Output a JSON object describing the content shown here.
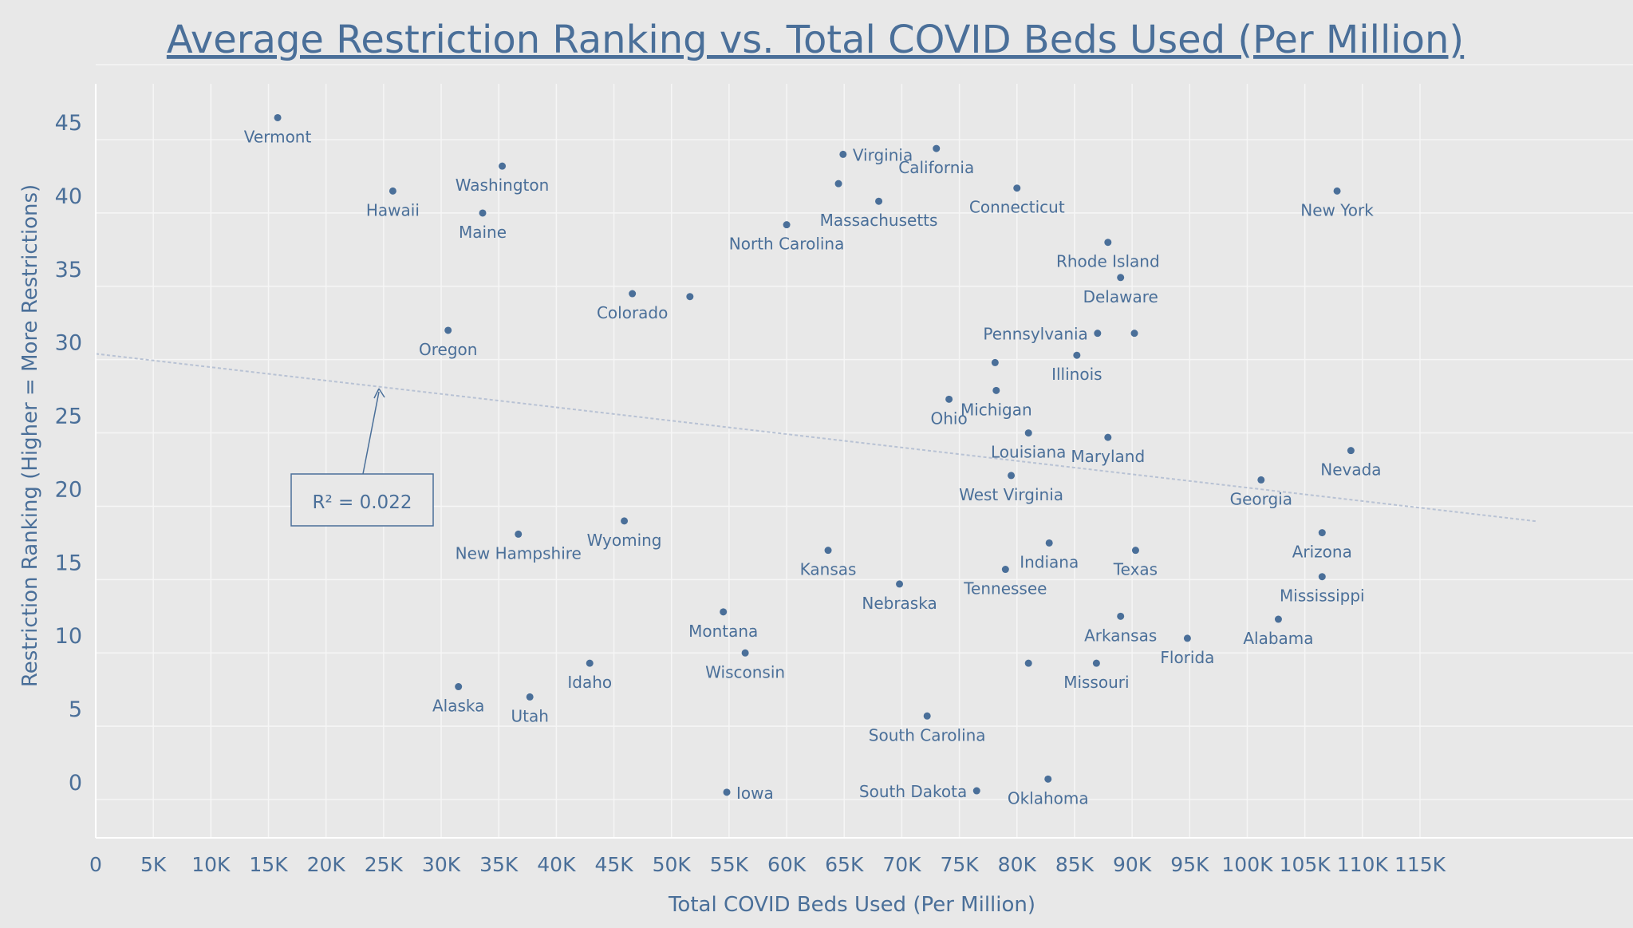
{
  "chart_data": {
    "type": "scatter",
    "title": "Average Restriction Ranking vs. Total COVID Beds Used (Per Million)",
    "xlabel": "Total COVID Beds Used (Per Million)",
    "ylabel": "Restriction Ranking (Higher = More Restrictions)",
    "xlim": [
      0,
      115000
    ],
    "ylim": [
      -3.8,
      47
    ],
    "x_ticks": [
      0,
      5000,
      10000,
      15000,
      20000,
      25000,
      30000,
      35000,
      40000,
      45000,
      50000,
      55000,
      60000,
      65000,
      70000,
      75000,
      80000,
      85000,
      90000,
      95000,
      100000,
      105000,
      110000,
      115000
    ],
    "x_tick_labels": [
      "0",
      "5K",
      "10K",
      "15K",
      "20K",
      "25K",
      "30K",
      "35K",
      "40K",
      "45K",
      "50K",
      "55K",
      "60K",
      "65K",
      "70K",
      "75K",
      "80K",
      "85K",
      "90K",
      "95K",
      "100K",
      "105K",
      "110K",
      "115K"
    ],
    "y_ticks": [
      0,
      5,
      10,
      15,
      20,
      25,
      30,
      35,
      40,
      45
    ],
    "y_tick_labels": [
      "0",
      "5",
      "10",
      "15",
      "20",
      "25",
      "30",
      "35",
      "40",
      "45"
    ],
    "grid": true,
    "point_color": "#4a6f99",
    "trend_color": "#b8c2d4",
    "trendline": {
      "x": [
        0,
        115000
      ],
      "y": [
        29.2,
        18.7
      ]
    },
    "annotation": {
      "text": "R² = 0.022",
      "x": 21000,
      "y": 26
    },
    "points": [
      {
        "x": 15800,
        "y": 45.3,
        "label": "Vermont",
        "pos": "below"
      },
      {
        "x": 25800,
        "y": 40.3,
        "label": "Hawaii",
        "pos": "below"
      },
      {
        "x": 35300,
        "y": 42.0,
        "label": "Washington",
        "pos": "below"
      },
      {
        "x": 33600,
        "y": 38.8,
        "label": "Maine",
        "pos": "below"
      },
      {
        "x": 30600,
        "y": 30.8,
        "label": "Oregon",
        "pos": "below"
      },
      {
        "x": 46600,
        "y": 33.3,
        "label": "Colorado",
        "pos": "below"
      },
      {
        "x": 51600,
        "y": 33.1,
        "label": "",
        "pos": "below"
      },
      {
        "x": 36700,
        "y": 16.9,
        "label": "New Hampshire",
        "pos": "below"
      },
      {
        "x": 45900,
        "y": 17.8,
        "label": "Wyoming",
        "pos": "below"
      },
      {
        "x": 31500,
        "y": 6.5,
        "label": "Alaska",
        "pos": "below"
      },
      {
        "x": 37700,
        "y": 5.8,
        "label": "Utah",
        "pos": "below"
      },
      {
        "x": 42900,
        "y": 8.1,
        "label": "Idaho",
        "pos": "below"
      },
      {
        "x": 54500,
        "y": 11.6,
        "label": "Montana",
        "pos": "below"
      },
      {
        "x": 56400,
        "y": 8.8,
        "label": "Wisconsin",
        "pos": "below"
      },
      {
        "x": 54800,
        "y": -0.7,
        "label": "Iowa",
        "pos": "right"
      },
      {
        "x": 64900,
        "y": 42.8,
        "label": "Virginia",
        "pos": "right"
      },
      {
        "x": 64500,
        "y": 40.8,
        "label": "",
        "pos": "below"
      },
      {
        "x": 68000,
        "y": 39.6,
        "label": "Massachusetts",
        "pos": "below"
      },
      {
        "x": 60000,
        "y": 38.0,
        "label": "North Carolina",
        "pos": "below"
      },
      {
        "x": 73000,
        "y": 43.2,
        "label": "California",
        "pos": "below"
      },
      {
        "x": 80000,
        "y": 40.5,
        "label": "Connecticut",
        "pos": "below"
      },
      {
        "x": 63600,
        "y": 15.8,
        "label": "Kansas",
        "pos": "below"
      },
      {
        "x": 69800,
        "y": 13.5,
        "label": "Nebraska",
        "pos": "below"
      },
      {
        "x": 72200,
        "y": 4.5,
        "label": "South Carolina",
        "pos": "below"
      },
      {
        "x": 76500,
        "y": -0.6,
        "label": "South Dakota",
        "pos": "left"
      },
      {
        "x": 82700,
        "y": 0.2,
        "label": "Oklahoma",
        "pos": "below"
      },
      {
        "x": 74100,
        "y": 26.1,
        "label": "Ohio",
        "pos": "below"
      },
      {
        "x": 78200,
        "y": 26.7,
        "label": "Michigan",
        "pos": "below"
      },
      {
        "x": 78100,
        "y": 28.6,
        "label": "",
        "pos": "below"
      },
      {
        "x": 81000,
        "y": 23.8,
        "label": "Louisiana",
        "pos": "below"
      },
      {
        "x": 79500,
        "y": 20.9,
        "label": "West Virginia",
        "pos": "below"
      },
      {
        "x": 82800,
        "y": 16.3,
        "label": "Indiana",
        "pos": "below"
      },
      {
        "x": 79000,
        "y": 14.5,
        "label": "Tennessee",
        "pos": "below"
      },
      {
        "x": 81000,
        "y": 8.1,
        "label": "",
        "pos": "below"
      },
      {
        "x": 87900,
        "y": 36.8,
        "label": "Rhode Island",
        "pos": "below"
      },
      {
        "x": 89000,
        "y": 34.4,
        "label": "Delaware",
        "pos": "below"
      },
      {
        "x": 87000,
        "y": 30.6,
        "label": "Pennsylvania",
        "pos": "left"
      },
      {
        "x": 90200,
        "y": 30.6,
        "label": "",
        "pos": "below"
      },
      {
        "x": 85200,
        "y": 29.1,
        "label": "Illinois",
        "pos": "below"
      },
      {
        "x": 87900,
        "y": 23.5,
        "label": "Maryland",
        "pos": "below"
      },
      {
        "x": 90300,
        "y": 15.8,
        "label": "Texas",
        "pos": "below"
      },
      {
        "x": 89000,
        "y": 11.3,
        "label": "Arkansas",
        "pos": "below"
      },
      {
        "x": 86900,
        "y": 8.1,
        "label": "Missouri",
        "pos": "below"
      },
      {
        "x": 94800,
        "y": 9.8,
        "label": "Florida",
        "pos": "below"
      },
      {
        "x": 107800,
        "y": 40.3,
        "label": "New York",
        "pos": "below"
      },
      {
        "x": 109000,
        "y": 22.6,
        "label": "Nevada",
        "pos": "below"
      },
      {
        "x": 101200,
        "y": 20.6,
        "label": "Georgia",
        "pos": "below"
      },
      {
        "x": 106500,
        "y": 17.0,
        "label": "Arizona",
        "pos": "below"
      },
      {
        "x": 106500,
        "y": 14.0,
        "label": "Mississippi",
        "pos": "below"
      },
      {
        "x": 102700,
        "y": 11.1,
        "label": "Alabama",
        "pos": "below"
      }
    ]
  }
}
